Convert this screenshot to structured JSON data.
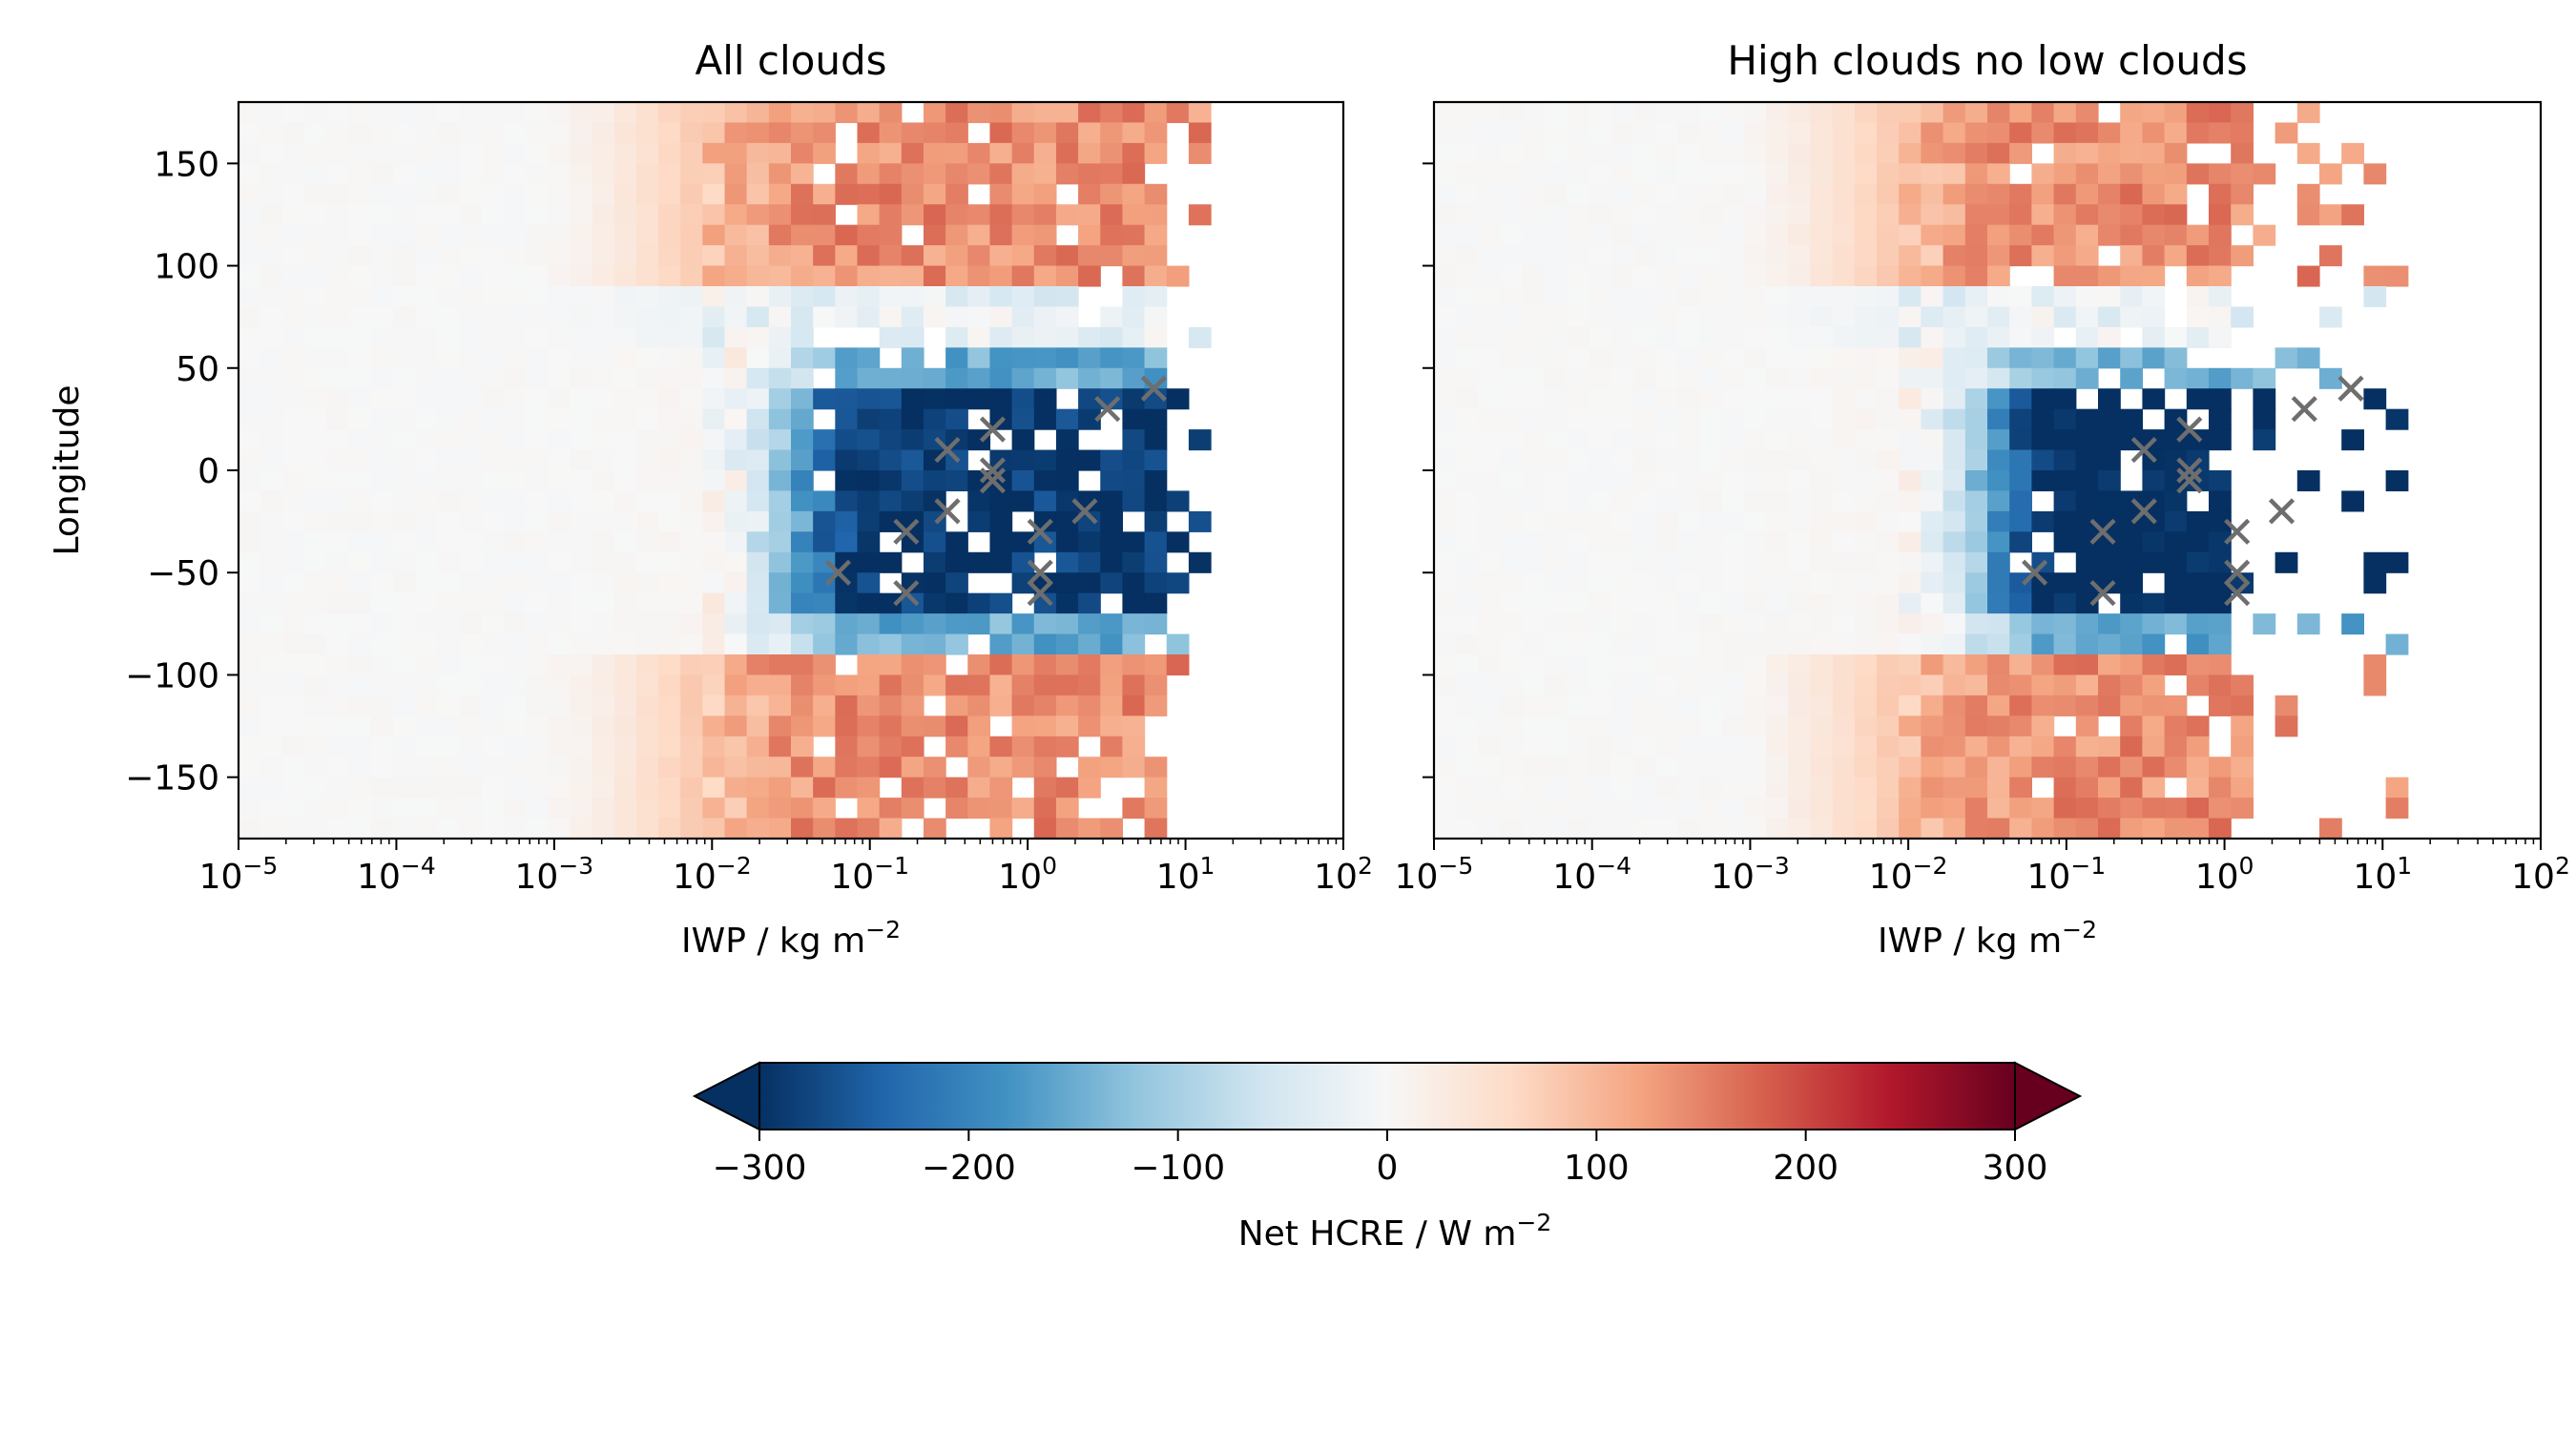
{
  "chart_data": {
    "type": "heatmap",
    "shared": {
      "xlabel": "IWP / kg m",
      "xlabel_exponent": "−2",
      "ylabel": "Longitude",
      "xscale": "log",
      "xlim": [
        1e-05,
        100
      ],
      "ylim": [
        -180,
        180
      ],
      "x_bins": 50,
      "y_bins": 36,
      "x_ticks": [
        {
          "base": "10",
          "exp": "−5"
        },
        {
          "base": "10",
          "exp": "−4"
        },
        {
          "base": "10",
          "exp": "−3"
        },
        {
          "base": "10",
          "exp": "−2"
        },
        {
          "base": "10",
          "exp": "−1"
        },
        {
          "base": "10",
          "exp": "0"
        },
        {
          "base": "10",
          "exp": "1"
        },
        {
          "base": "10",
          "exp": "2"
        }
      ],
      "y_ticks": [
        {
          "value": 150,
          "label": "150"
        },
        {
          "value": 100,
          "label": "100"
        },
        {
          "value": 50,
          "label": "50"
        },
        {
          "value": 0,
          "label": "0"
        },
        {
          "value": -50,
          "label": "−50"
        },
        {
          "value": -100,
          "label": "−100"
        },
        {
          "value": -150,
          "label": "−150"
        }
      ],
      "cell_values_approx": "Net HCRE ~0 W m-2 at low IWP; rises to ~+150 W m-2 for IWP > 1e-2 at |longitude| > ~90; falls to ~-300 W m-2 for IWP 0.05-1 near longitude -60..+50; many empty bins at IWP > 1"
    },
    "panels": [
      {
        "title": "All clouds",
        "markers": [
          [
            0.063,
            -50
          ],
          [
            0.17,
            -60
          ],
          [
            0.17,
            -30
          ],
          [
            0.31,
            10
          ],
          [
            0.31,
            -20
          ],
          [
            0.6,
            20
          ],
          [
            0.6,
            0
          ],
          [
            0.6,
            -5
          ],
          [
            1.2,
            -30
          ],
          [
            1.2,
            -50
          ],
          [
            1.2,
            -60
          ],
          [
            2.3,
            -20
          ],
          [
            3.2,
            30
          ],
          [
            6.3,
            40
          ]
        ]
      },
      {
        "title": "High clouds no low clouds",
        "markers": [
          [
            0.063,
            -50
          ],
          [
            0.17,
            -60
          ],
          [
            0.17,
            -30
          ],
          [
            0.31,
            10
          ],
          [
            0.31,
            -20
          ],
          [
            0.6,
            20
          ],
          [
            0.6,
            0
          ],
          [
            0.6,
            -5
          ],
          [
            1.2,
            -30
          ],
          [
            1.2,
            -50
          ],
          [
            1.2,
            -60
          ],
          [
            2.3,
            -20
          ],
          [
            3.2,
            30
          ],
          [
            6.3,
            40
          ]
        ]
      }
    ],
    "colorbar": {
      "label": "Net HCRE / W m",
      "label_exponent": "−2",
      "range": [
        -300,
        300
      ],
      "extend": "both",
      "colormap": "RdBu_r",
      "ticks": [
        {
          "value": -300,
          "label": "−300"
        },
        {
          "value": -200,
          "label": "−200"
        },
        {
          "value": -100,
          "label": "−100"
        },
        {
          "value": 0,
          "label": "0"
        },
        {
          "value": 100,
          "label": "100"
        },
        {
          "value": 200,
          "label": "200"
        },
        {
          "value": 300,
          "label": "300"
        }
      ]
    }
  }
}
